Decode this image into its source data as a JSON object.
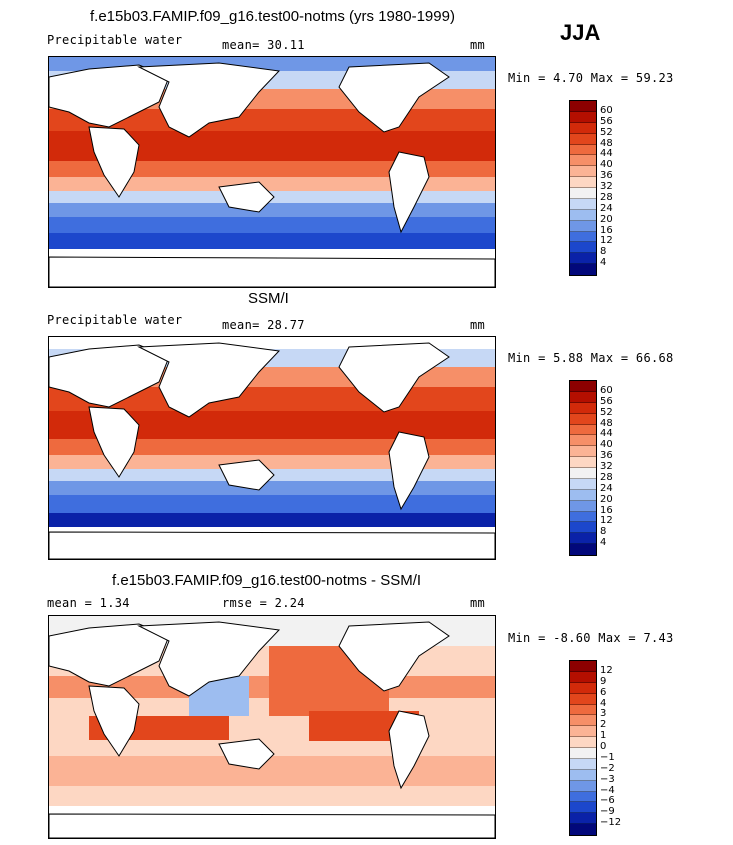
{
  "season": "JJA",
  "panels": [
    {
      "title": "f.e15b03.FAMIP.f09_g16.test00-notms (yrs 1980-1999)",
      "label_left": "Precipitable water",
      "label_mid": "mean=  30.11",
      "unit": "mm",
      "minmax": "Min =   4.70 Max =  59.23",
      "cbar_ticks": [
        "60",
        "56",
        "52",
        "48",
        "44",
        "40",
        "36",
        "32",
        "28",
        "24",
        "20",
        "16",
        "12",
        "8",
        "4"
      ]
    },
    {
      "title": "SSM/I",
      "label_left": "Precipitable water",
      "label_mid": "mean=  28.77",
      "unit": "mm",
      "minmax": "Min =   5.88 Max =  66.68",
      "cbar_ticks": [
        "60",
        "56",
        "52",
        "48",
        "44",
        "40",
        "36",
        "32",
        "28",
        "24",
        "20",
        "16",
        "12",
        "8",
        "4"
      ]
    },
    {
      "title": "f.e15b03.FAMIP.f09_g16.test00-notms - SSM/I",
      "label_left": "mean =   1.34",
      "label_mid": "rmse =   2.24",
      "unit": "mm",
      "minmax": "Min =  -8.60 Max =   7.43",
      "cbar_ticks": [
        "12",
        "9",
        "6",
        "4",
        "3",
        "2",
        "1",
        "0",
        "−1",
        "−2",
        "−3",
        "−4",
        "−6",
        "−9",
        "−12"
      ]
    }
  ],
  "colors": {
    "pw_scale": [
      "#8c0000",
      "#b40f00",
      "#d22a0a",
      "#e2461c",
      "#ee6a3e",
      "#f68f68",
      "#fbb395",
      "#fdd7c3",
      "#f2f2f2",
      "#c6d8f5",
      "#9dbdf0",
      "#6f97e6",
      "#3f6ede",
      "#1c47cc",
      "#0a22a8",
      "#02087a"
    ],
    "diff_scale": [
      "#8c0000",
      "#b40f00",
      "#d22a0a",
      "#e2461c",
      "#ee6a3e",
      "#f68f68",
      "#fbb395",
      "#fdd7c3",
      "#f2f2f2",
      "#c6d8f5",
      "#9dbdf0",
      "#6f97e6",
      "#3f6ede",
      "#1c47cc",
      "#0a22a8",
      "#02087a"
    ]
  }
}
